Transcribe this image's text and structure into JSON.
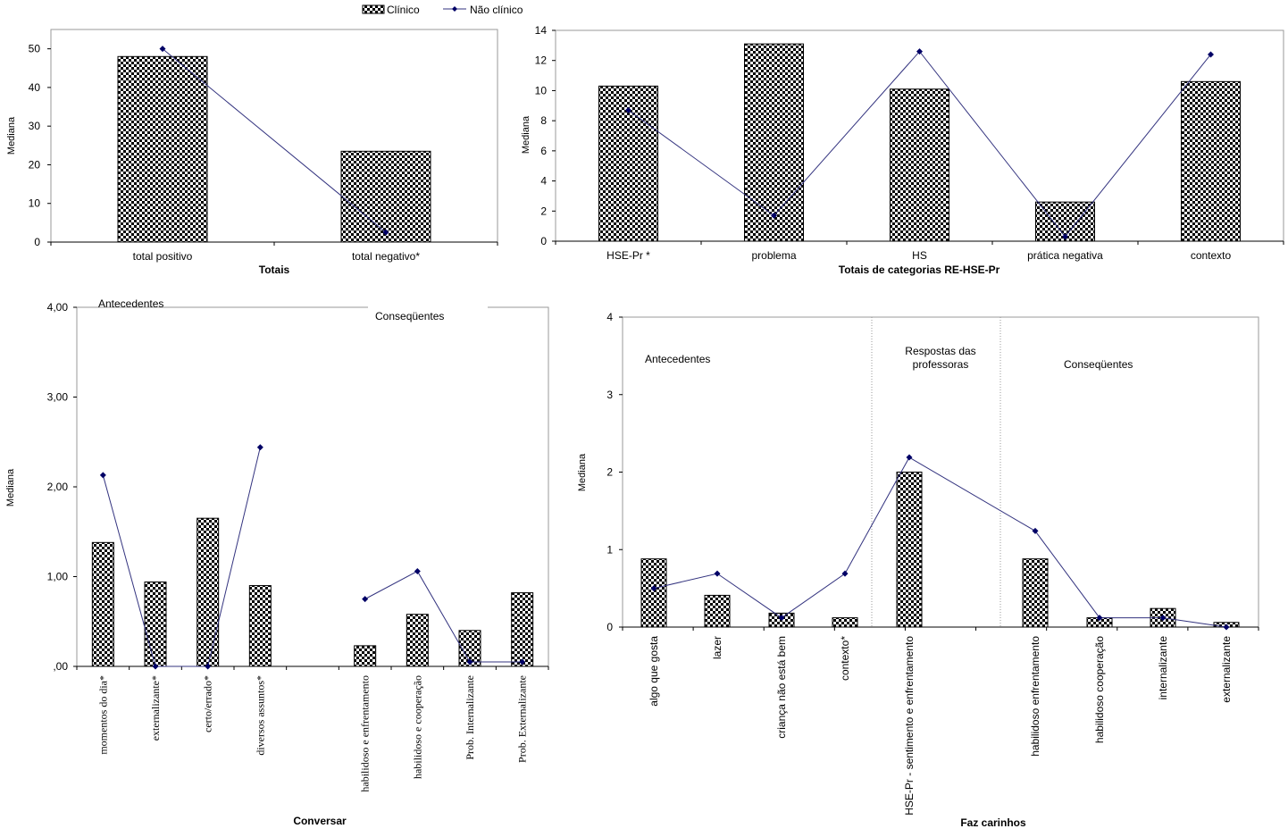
{
  "legend": {
    "bar_label": "Clínico",
    "line_label": "Não clínico"
  },
  "colors": {
    "line": "#33337f",
    "marker": "#000066",
    "bar_outline": "#000000",
    "bar_check": "#000000"
  },
  "chart_data": [
    {
      "id": "totais",
      "type": "bar",
      "xlabel": "Totais",
      "ylabel": "Mediana",
      "ylim": [
        0,
        55
      ],
      "yticks": [
        "0",
        "10",
        "20",
        "30",
        "40",
        "50"
      ],
      "ytick_values": [
        0,
        10,
        20,
        30,
        40,
        50
      ],
      "categories": [
        "total positivo",
        "total negativo*"
      ],
      "series": [
        {
          "name": "Clínico",
          "kind": "bar",
          "values": [
            48,
            23.5
          ]
        },
        {
          "name": "Não clínico",
          "kind": "line",
          "values": [
            50,
            2.5
          ]
        }
      ]
    },
    {
      "id": "categorias",
      "type": "bar",
      "xlabel": "Totais de categorias RE-HSE-Pr",
      "ylabel": "Mediana",
      "ylim": [
        0,
        14
      ],
      "yticks": [
        "0",
        "2",
        "4",
        "6",
        "8",
        "10",
        "12",
        "14"
      ],
      "ytick_values": [
        0,
        2,
        4,
        6,
        8,
        10,
        12,
        14
      ],
      "categories": [
        "HSE-Pr *",
        "problema",
        "HS",
        "prática negativa",
        "contexto"
      ],
      "series": [
        {
          "name": "Clínico",
          "kind": "bar",
          "values": [
            10.3,
            13.1,
            10.1,
            2.6,
            10.6
          ]
        },
        {
          "name": "Não clínico",
          "kind": "line",
          "values": [
            8.7,
            1.7,
            12.6,
            0.3,
            12.4
          ]
        }
      ]
    },
    {
      "id": "conversar",
      "type": "bar",
      "xlabel": "Conversar",
      "ylabel": "Mediana",
      "ylim": [
        0,
        4
      ],
      "yticks": [
        ",00",
        "1,00",
        "2,00",
        "3,00",
        "4,00"
      ],
      "ytick_values": [
        0,
        1,
        2,
        3,
        4
      ],
      "annotations": [
        "Antecedentes",
        "Conseqüentes"
      ],
      "categories": [
        "momentos do dia*",
        "externalizante*",
        "certo/errado*",
        "diversos assuntos*",
        "",
        "habilidoso e enfrentamento",
        "habilidoso e cooperação",
        "Prob. Internalizante",
        "Prob. Externalizante"
      ],
      "series": [
        {
          "name": "Clínico",
          "kind": "bar",
          "values": [
            1.38,
            0.94,
            1.65,
            0.9,
            null,
            0.23,
            0.58,
            0.4,
            0.82
          ]
        },
        {
          "name": "Não clínico",
          "kind": "line",
          "values": [
            2.13,
            0.0,
            0.0,
            2.44,
            null,
            0.75,
            1.06,
            0.05,
            0.05
          ]
        }
      ]
    },
    {
      "id": "faz_carinhos",
      "type": "bar",
      "xlabel": "Faz carinhos",
      "ylabel": "Mediana",
      "ylim": [
        0,
        4
      ],
      "yticks": [
        "0",
        "1",
        "2",
        "3",
        "4"
      ],
      "ytick_values": [
        0,
        1,
        2,
        3,
        4
      ],
      "annotations": [
        "Antecedentes",
        "Respostas das professoras",
        "Conseqüentes"
      ],
      "categories": [
        "algo que gosta",
        "lazer",
        "criança não está bem",
        "contexto*",
        "HSE-Pr - sentimento e enfrentamento",
        "habilidoso enfrentamento",
        "habilidoso cooperação",
        "internalizante",
        "externalizante"
      ],
      "series": [
        {
          "name": "Clínico",
          "kind": "bar",
          "values": [
            0.88,
            0.41,
            0.18,
            0.12,
            2.0,
            0.88,
            0.12,
            0.24,
            0.06
          ]
        },
        {
          "name": "Não clínico",
          "kind": "line",
          "values": [
            0.5,
            0.69,
            0.12,
            0.69,
            2.19,
            1.24,
            0.12,
            0.12,
            0.0
          ]
        }
      ]
    }
  ]
}
